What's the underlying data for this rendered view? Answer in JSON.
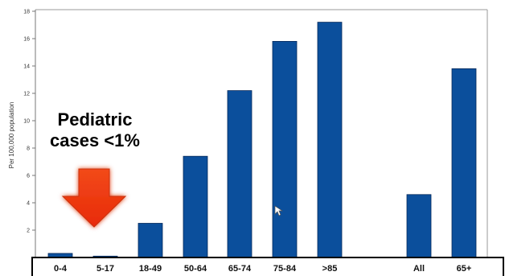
{
  "chart_data": {
    "type": "bar",
    "title": "",
    "xlabel": "",
    "ylabel": "Per 100,000 population",
    "ylim": [
      0,
      18
    ],
    "yticks": [
      2,
      4,
      6,
      8,
      10,
      12,
      14,
      16,
      18
    ],
    "grid": false,
    "legend": "none",
    "categories": [
      "0-4",
      "5-17",
      "18-49",
      "50-64",
      "65-74",
      "75-84",
      ">85",
      "All",
      "65+"
    ],
    "values": [
      0.3,
      0.1,
      2.5,
      7.4,
      12.2,
      15.8,
      17.2,
      4.6,
      13.8
    ],
    "bar_color": "#0b4f9c",
    "annotation": {
      "line1": "Pediatric",
      "line2": "cases <1%",
      "arrow_color": "#f03a0e",
      "arrow_icon": "down-arrow-icon"
    }
  }
}
